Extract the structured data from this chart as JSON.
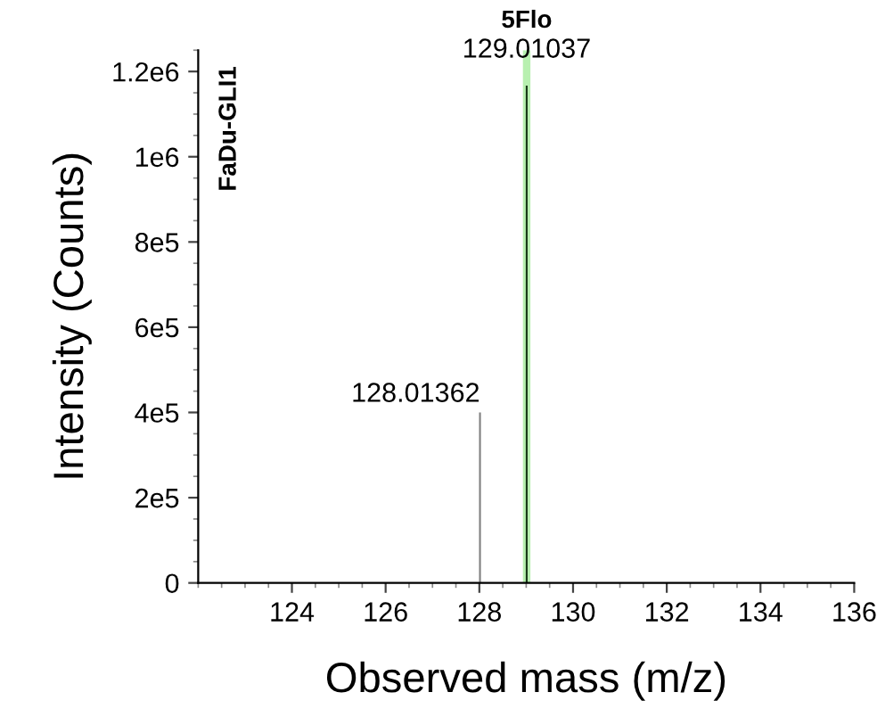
{
  "chart_data": {
    "type": "bar",
    "xlabel": "Observed mass (m/z)",
    "ylabel": "Intensity (Counts)",
    "x": [
      128.01362,
      129.01037
    ],
    "values": [
      400000,
      1167000
    ],
    "colors": [
      "#808080",
      "#1a3a1a"
    ],
    "xlim": [
      122,
      136
    ],
    "xticks": [
      124,
      126,
      128,
      130,
      132,
      134,
      136
    ],
    "ylim": [
      0,
      1250000
    ],
    "yticks": [
      0,
      {
        "value": 200000,
        "label": "2e5"
      },
      {
        "value": 400000,
        "label": "4e5"
      },
      {
        "value": 600000,
        "label": "6e5"
      },
      {
        "value": 800000,
        "label": "8e5"
      },
      {
        "value": 1000000,
        "label": "1e6"
      },
      {
        "value": 1200000,
        "label": "1.2e6"
      }
    ],
    "bands": [
      {
        "axis": "x",
        "from": 128.93,
        "to": 129.09,
        "label": "5Flo",
        "color": "#b8f0b0"
      }
    ],
    "annotations": [
      {
        "text": "128.01362",
        "x": 128.01362,
        "y": 400000
      },
      {
        "text": "129.01037",
        "x": 129.01037,
        "y": 1167000
      },
      "FaDu-GLI1"
    ],
    "grid": false,
    "legend": false
  }
}
